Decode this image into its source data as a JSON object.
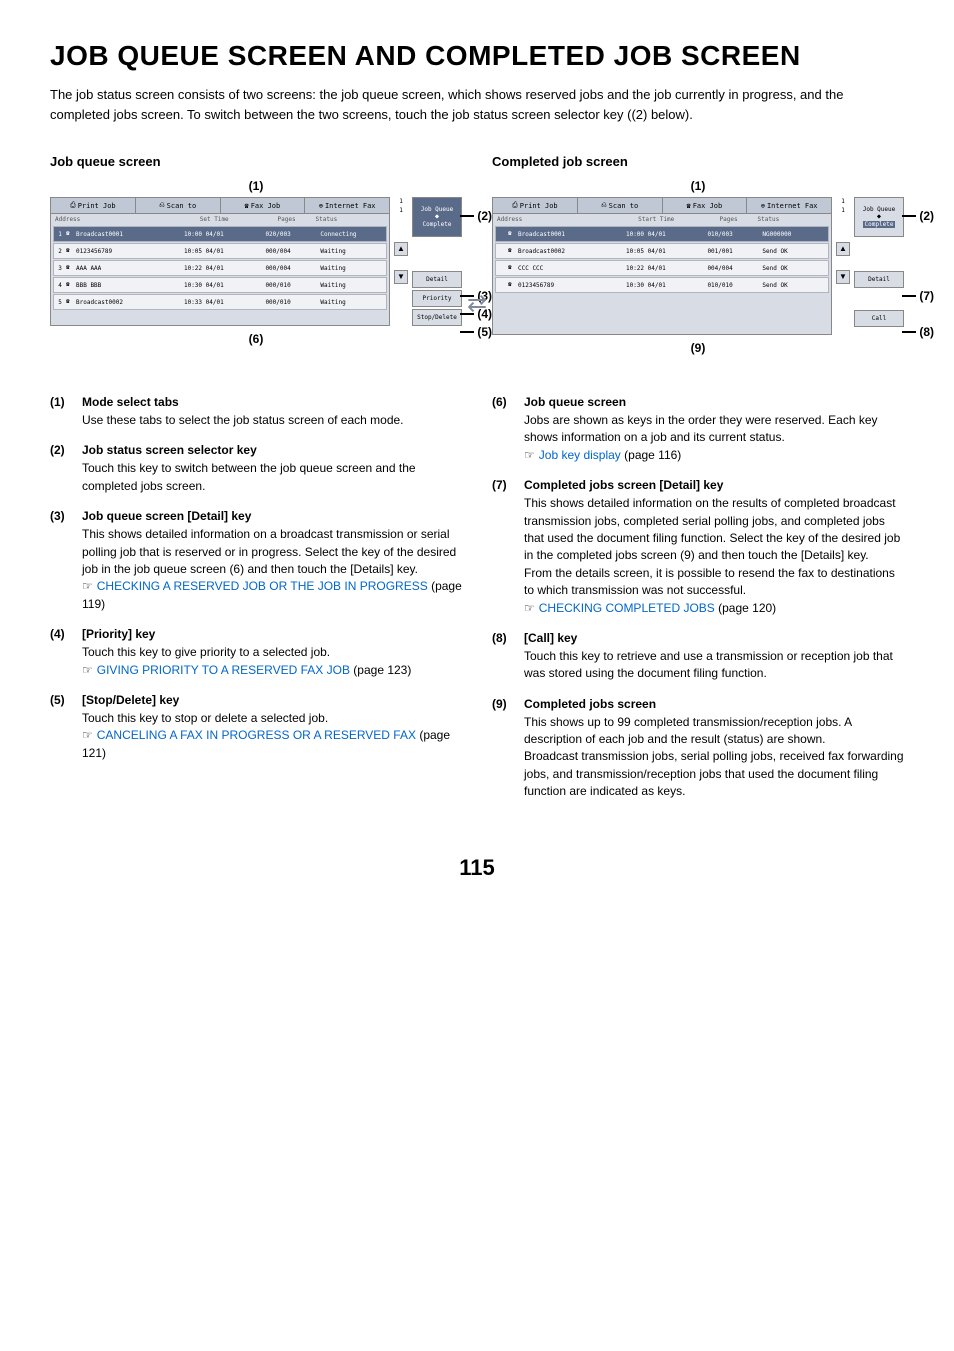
{
  "page_title": "JOB QUEUE SCREEN AND COMPLETED JOB SCREEN",
  "intro": "The job status screen consists of two screens: the job queue screen, which shows reserved jobs and the job currently in progress, and the completed jobs screen. To switch between the two screens, touch the job status screen selector key ((2) below).",
  "left_screen": {
    "title": "Job queue screen",
    "callout_top": "(1)",
    "callout_bottom": "(6)",
    "tabs": [
      "Print Job",
      "Scan to",
      "Fax Job",
      "Internet Fax"
    ],
    "headers": [
      "Address",
      "Set Time",
      "Pages",
      "Status"
    ],
    "rows": [
      {
        "num": "1",
        "addr": "Broadcast0001",
        "time": "10:00 04/01",
        "pages": "020/003",
        "status": "Connecting",
        "sel": true
      },
      {
        "num": "2",
        "addr": "0123456789",
        "time": "10:05 04/01",
        "pages": "000/004",
        "status": "Waiting",
        "sel": false
      },
      {
        "num": "3",
        "addr": "AAA AAA",
        "time": "10:22 04/01",
        "pages": "000/004",
        "status": "Waiting",
        "sel": false
      },
      {
        "num": "4",
        "addr": "BBB BBB",
        "time": "10:30 04/01",
        "pages": "000/010",
        "status": "Waiting",
        "sel": false
      },
      {
        "num": "5",
        "addr": "Broadcast0002",
        "time": "10:33 04/01",
        "pages": "000/010",
        "status": "Waiting",
        "sel": false
      }
    ],
    "side": {
      "scroll_top": "1",
      "scroll_bot": "1",
      "job_queue": "Job Queue",
      "complete": "Complete",
      "detail": "Detail",
      "priority": "Priority",
      "stop": "Stop/Delete"
    },
    "callouts_right": [
      "(2)",
      "(3)",
      "(4)",
      "(5)"
    ]
  },
  "right_screen": {
    "title": "Completed job screen",
    "callout_top": "(1)",
    "callout_bottom": "(9)",
    "tabs": [
      "Print Job",
      "Scan to",
      "Fax Job",
      "Internet Fax"
    ],
    "headers": [
      "Address",
      "Start Time",
      "Pages",
      "Status"
    ],
    "rows": [
      {
        "num": "",
        "addr": "Broadcast0001",
        "time": "10:00 04/01",
        "pages": "010/003",
        "status": "NG000000",
        "sel": true
      },
      {
        "num": "",
        "addr": "Broadcast0002",
        "time": "10:05 04/01",
        "pages": "001/001",
        "status": "Send OK",
        "sel": false
      },
      {
        "num": "",
        "addr": "CCC CCC",
        "time": "10:22 04/01",
        "pages": "004/004",
        "status": "Send OK",
        "sel": false
      },
      {
        "num": "",
        "addr": "0123456789",
        "time": "10:30 04/01",
        "pages": "010/010",
        "status": "Send OK",
        "sel": false
      }
    ],
    "side": {
      "scroll_top": "1",
      "scroll_bot": "1",
      "job_queue": "Job Queue",
      "complete": "Complete",
      "detail": "Detail",
      "call": "Call"
    },
    "callouts_right": [
      "(2)",
      "(7)",
      "(8)"
    ]
  },
  "defs_left": [
    {
      "num": "(1)",
      "title": "Mode select tabs",
      "text": "Use these tabs to select the job status screen of each mode."
    },
    {
      "num": "(2)",
      "title": "Job status screen selector key",
      "text": "Touch this key to switch between the job queue screen and the completed jobs screen."
    },
    {
      "num": "(3)",
      "title": "Job queue screen [Detail] key",
      "text": "This shows detailed information on a broadcast transmission or serial polling job that is reserved or in progress. Select the key of the desired job in the job queue screen (6) and then touch the [Details] key.",
      "link": "CHECKING A RESERVED JOB OR THE JOB IN PROGRESS",
      "link_page": " (page 119)"
    },
    {
      "num": "(4)",
      "title": "[Priority] key",
      "text": "Touch this key to give priority to a selected job.",
      "link": "GIVING PRIORITY TO A RESERVED FAX JOB",
      "link_page": " (page 123)"
    },
    {
      "num": "(5)",
      "title": "[Stop/Delete] key",
      "text": "Touch this key to stop or delete a selected job.",
      "link": "CANCELING A FAX IN PROGRESS OR A RESERVED FAX",
      "link_page": " (page 121)"
    }
  ],
  "defs_right": [
    {
      "num": "(6)",
      "title": "Job queue screen",
      "text": "Jobs are shown as keys in the order they were reserved. Each key shows information on a job and its current status.",
      "link": "Job key display",
      "link_page": " (page 116)"
    },
    {
      "num": "(7)",
      "title": "Completed jobs screen [Detail] key",
      "text": "This shows detailed information on the results of completed broadcast transmission jobs, completed serial polling jobs, and completed jobs that used the document filing function. Select the key of the desired job in the completed jobs screen (9) and then touch the [Details] key.",
      "text2": "From the details screen, it is possible to resend the fax to destinations to which transmission was not successful.",
      "link": "CHECKING COMPLETED JOBS",
      "link_page": " (page 120)"
    },
    {
      "num": "(8)",
      "title": "[Call] key",
      "text": "Touch this key to retrieve and use a transmission or reception job that was stored using the document filing function."
    },
    {
      "num": "(9)",
      "title": "Completed jobs screen",
      "text": "This shows up to 99 completed transmission/reception jobs. A description of each job and the result (status) are shown.",
      "text2": "Broadcast transmission jobs, serial polling jobs, received fax forwarding jobs, and transmission/reception jobs that used the document filing function are indicated as keys."
    }
  ],
  "page_number": "115"
}
